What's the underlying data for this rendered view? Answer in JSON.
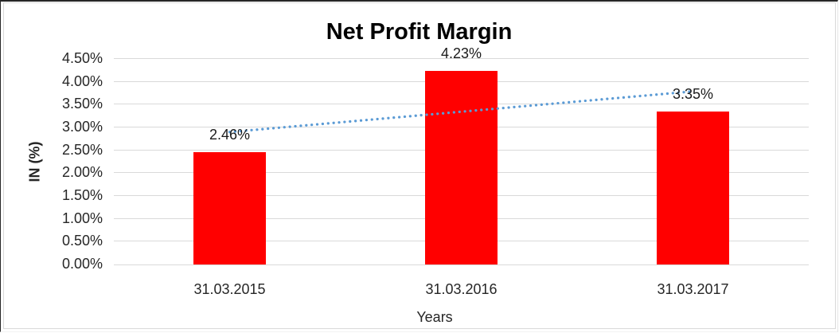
{
  "chart_data": {
    "type": "bar",
    "title": "Net Profit Margin",
    "xlabel": "Years",
    "ylabel": "IN (%)",
    "categories": [
      "31.03.2015",
      "31.03.2016",
      "31.03.2017"
    ],
    "values": [
      2.46,
      4.23,
      3.35
    ],
    "data_labels": [
      "2.46%",
      "4.23%",
      "3.35%"
    ],
    "ylim": [
      0,
      4.5
    ],
    "ytick_step": 0.5,
    "yticks": [
      "0.00%",
      "0.50%",
      "1.00%",
      "1.50%",
      "2.00%",
      "2.50%",
      "3.00%",
      "3.50%",
      "4.00%",
      "4.50%"
    ],
    "grid": "horizontal",
    "legend": "none",
    "bar_color": "#ff0000",
    "gridline_color": "#d9d9d9",
    "trendline": {
      "type": "linear",
      "style": "dotted",
      "color": "#5b9bd5",
      "start_value": 2.9,
      "end_value": 3.79
    }
  }
}
